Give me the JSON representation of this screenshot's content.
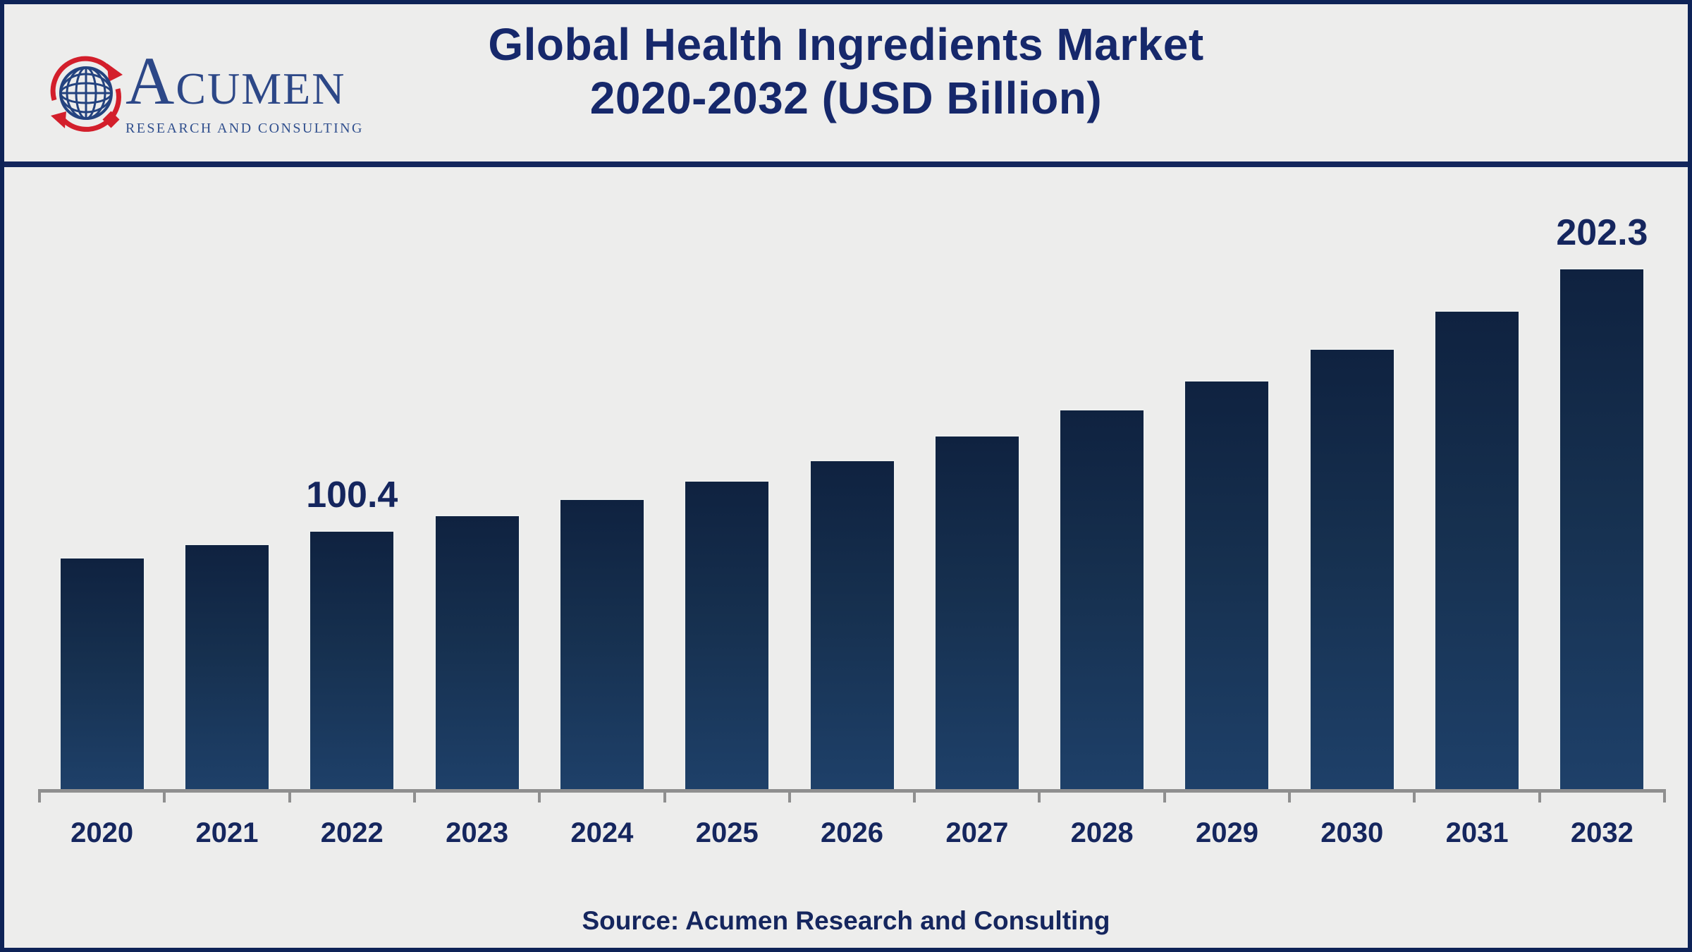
{
  "header": {
    "logo": {
      "initial": "A",
      "rest": "CUMEN",
      "tagline": "RESEARCH AND CONSULTING",
      "brand_blue": "#2c4787",
      "brand_red": "#d31f2b"
    },
    "title_line1": "Global Health Ingredients Market",
    "title_line2": "2020-2032 (USD Billion)"
  },
  "chart_data": {
    "type": "bar",
    "title": "Global Health Ingredients Market 2020-2032 (USD Billion)",
    "unit": "USD Billion",
    "categories": [
      "2020",
      "2021",
      "2022",
      "2023",
      "2024",
      "2025",
      "2026",
      "2027",
      "2028",
      "2029",
      "2030",
      "2031",
      "2032"
    ],
    "values": [
      90.0,
      95.3,
      100.4,
      106.4,
      112.7,
      119.9,
      127.8,
      137.3,
      147.5,
      158.7,
      171.0,
      186.0,
      202.3
    ],
    "labels": [
      "",
      "",
      "100.4",
      "",
      "",
      "",
      "",
      "",
      "",
      "",
      "",
      "",
      "202.3"
    ],
    "xlabel": "",
    "ylabel": "",
    "ylim": [
      0,
      241
    ],
    "grid": false,
    "legend": false,
    "bar_color_top": "#0f2240",
    "bar_color_bottom": "#1e4069",
    "axis_color": "#8f8f8f",
    "label_color": "#15265e"
  },
  "source": {
    "text": "Source: Acumen Research and Consulting"
  },
  "colors": {
    "background": "#ededec",
    "frame_border": "#0e2357",
    "divider": "#13265c",
    "title_text": "#16286b"
  }
}
